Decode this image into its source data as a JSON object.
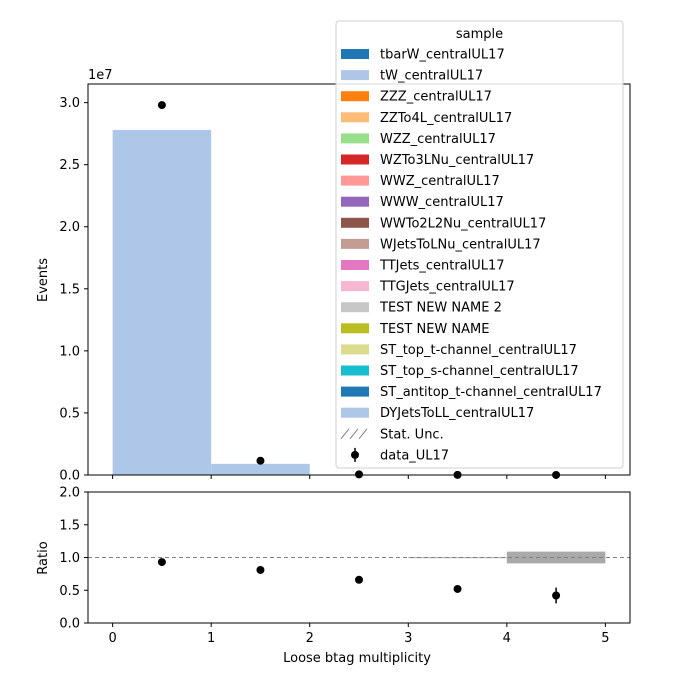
{
  "chart_data": {
    "type": "bar",
    "main": {
      "ylabel": "Events",
      "y_scale_label": "1e7",
      "ylim": [
        0,
        3.15
      ],
      "y_ticks": [
        "0.0",
        "0.5",
        "1.0",
        "1.5",
        "2.0",
        "2.5",
        "3.0"
      ],
      "bins": [
        0,
        1,
        2,
        3,
        4,
        5
      ],
      "stack_values": [
        2.78,
        0.09,
        0.0,
        0.0,
        0.0
      ],
      "data_values": [
        2.98,
        0.115,
        0.005,
        0.001,
        0.0002
      ],
      "data_color": "#000000"
    },
    "ratio": {
      "ylabel": "Ratio",
      "ylim": [
        0,
        2
      ],
      "y_ticks": [
        "0.0",
        "0.5",
        "1.0",
        "1.5",
        "2.0"
      ],
      "ref_line": 1.0,
      "points": [
        {
          "x": 0.5,
          "y": 0.93,
          "err": 0.0
        },
        {
          "x": 1.5,
          "y": 0.81,
          "err": 0.0
        },
        {
          "x": 2.5,
          "y": 0.66,
          "err": 0.0
        },
        {
          "x": 3.5,
          "y": 0.52,
          "err": 0.0
        },
        {
          "x": 4.5,
          "y": 0.42,
          "err": 0.12
        }
      ],
      "unc_bands": [
        {
          "x0": 3,
          "x1": 4,
          "lo": 0.995,
          "hi": 1.005
        },
        {
          "x0": 4,
          "x1": 5,
          "lo": 0.91,
          "hi": 1.09
        }
      ]
    },
    "xlabel": "Loose btag multiplicity",
    "x_ticks": [
      "0",
      "1",
      "2",
      "3",
      "4",
      "5"
    ],
    "xlim": [
      -0.25,
      5.25
    ],
    "legend": {
      "title": "sample",
      "placement": "top-right",
      "entries": [
        {
          "name": "tbarW_centralUL17",
          "color": "#1f77b4"
        },
        {
          "name": "tW_centralUL17",
          "color": "#aec7e8"
        },
        {
          "name": "ZZZ_centralUL17",
          "color": "#ff7f0e"
        },
        {
          "name": "ZZTo4L_centralUL17",
          "color": "#ffbb78"
        },
        {
          "name": "WZZ_centralUL17",
          "color": "#98df8a"
        },
        {
          "name": "WZTo3LNu_centralUL17",
          "color": "#d62728"
        },
        {
          "name": "WWZ_centralUL17",
          "color": "#ff9896"
        },
        {
          "name": "WWW_centralUL17",
          "color": "#9467bd"
        },
        {
          "name": "WWTo2L2Nu_centralUL17",
          "color": "#8c564b"
        },
        {
          "name": "WJetsToLNu_centralUL17",
          "color": "#c49c94"
        },
        {
          "name": "TTJets_centralUL17",
          "color": "#e377c2"
        },
        {
          "name": "TTGJets_centralUL17",
          "color": "#f7b6d2"
        },
        {
          "name": "TEST NEW NAME 2",
          "color": "#c7c7c7"
        },
        {
          "name": "TEST NEW NAME",
          "color": "#bcbd22"
        },
        {
          "name": "ST_top_t-channel_centralUL17",
          "color": "#dbdb8d"
        },
        {
          "name": "ST_top_s-channel_centralUL17",
          "color": "#17becf"
        },
        {
          "name": "ST_antitop_t-channel_centralUL17",
          "color": "#1f77b4"
        },
        {
          "name": "DYJetsToLL_centralUL17",
          "color": "#aec7e8"
        }
      ],
      "unc_label": "Stat. Unc.",
      "data_label": "data_UL17"
    },
    "stack_color": "#aec7e8",
    "unc_color": "#a9a9a9"
  }
}
